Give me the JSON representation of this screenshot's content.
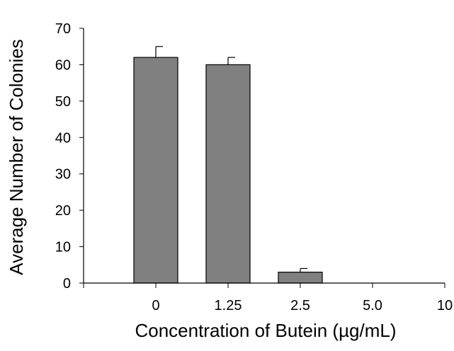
{
  "chart_data": {
    "type": "bar",
    "title": "",
    "xlabel": "Concentration of Butein (µg/mL)",
    "ylabel": "Average Number of Colonies",
    "categories": [
      "0",
      "1.25",
      "2.5",
      "5.0",
      "10"
    ],
    "values": [
      62,
      60,
      3,
      0,
      0
    ],
    "error_bars": [
      3,
      2,
      1,
      0,
      0
    ],
    "yticks": [
      0,
      10,
      20,
      30,
      40,
      50,
      60,
      70
    ],
    "ylim": [
      0,
      70
    ],
    "grid": false,
    "legend": "none",
    "bar_color": "#808080",
    "bar_edge_color": "#000000",
    "axis_color": "#000000"
  }
}
